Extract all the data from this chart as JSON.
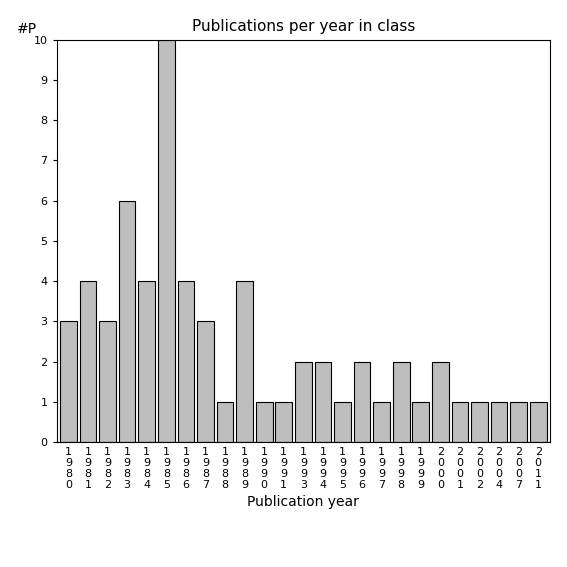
{
  "years": [
    1980,
    1981,
    1982,
    1983,
    1984,
    1985,
    1986,
    1987,
    1988,
    1989,
    1990,
    1991,
    1993,
    1994,
    1995,
    1996,
    1997,
    1998,
    1999,
    2000,
    2001,
    2002,
    2004,
    2007,
    2011
  ],
  "values": [
    3,
    4,
    3,
    6,
    4,
    10,
    4,
    3,
    1,
    4,
    1,
    1,
    2,
    2,
    1,
    2,
    1,
    2,
    1,
    2,
    1,
    1,
    1,
    1,
    1
  ],
  "title": "Publications per year in class",
  "xlabel": "Publication year",
  "ylabel": "#P",
  "bar_color": "#bebebe",
  "bar_edge_color": "#000000",
  "ylim": [
    0,
    10
  ],
  "yticks": [
    0,
    1,
    2,
    3,
    4,
    5,
    6,
    7,
    8,
    9,
    10
  ],
  "background_color": "#ffffff",
  "title_fontsize": 11,
  "label_fontsize": 10,
  "tick_fontsize": 8
}
